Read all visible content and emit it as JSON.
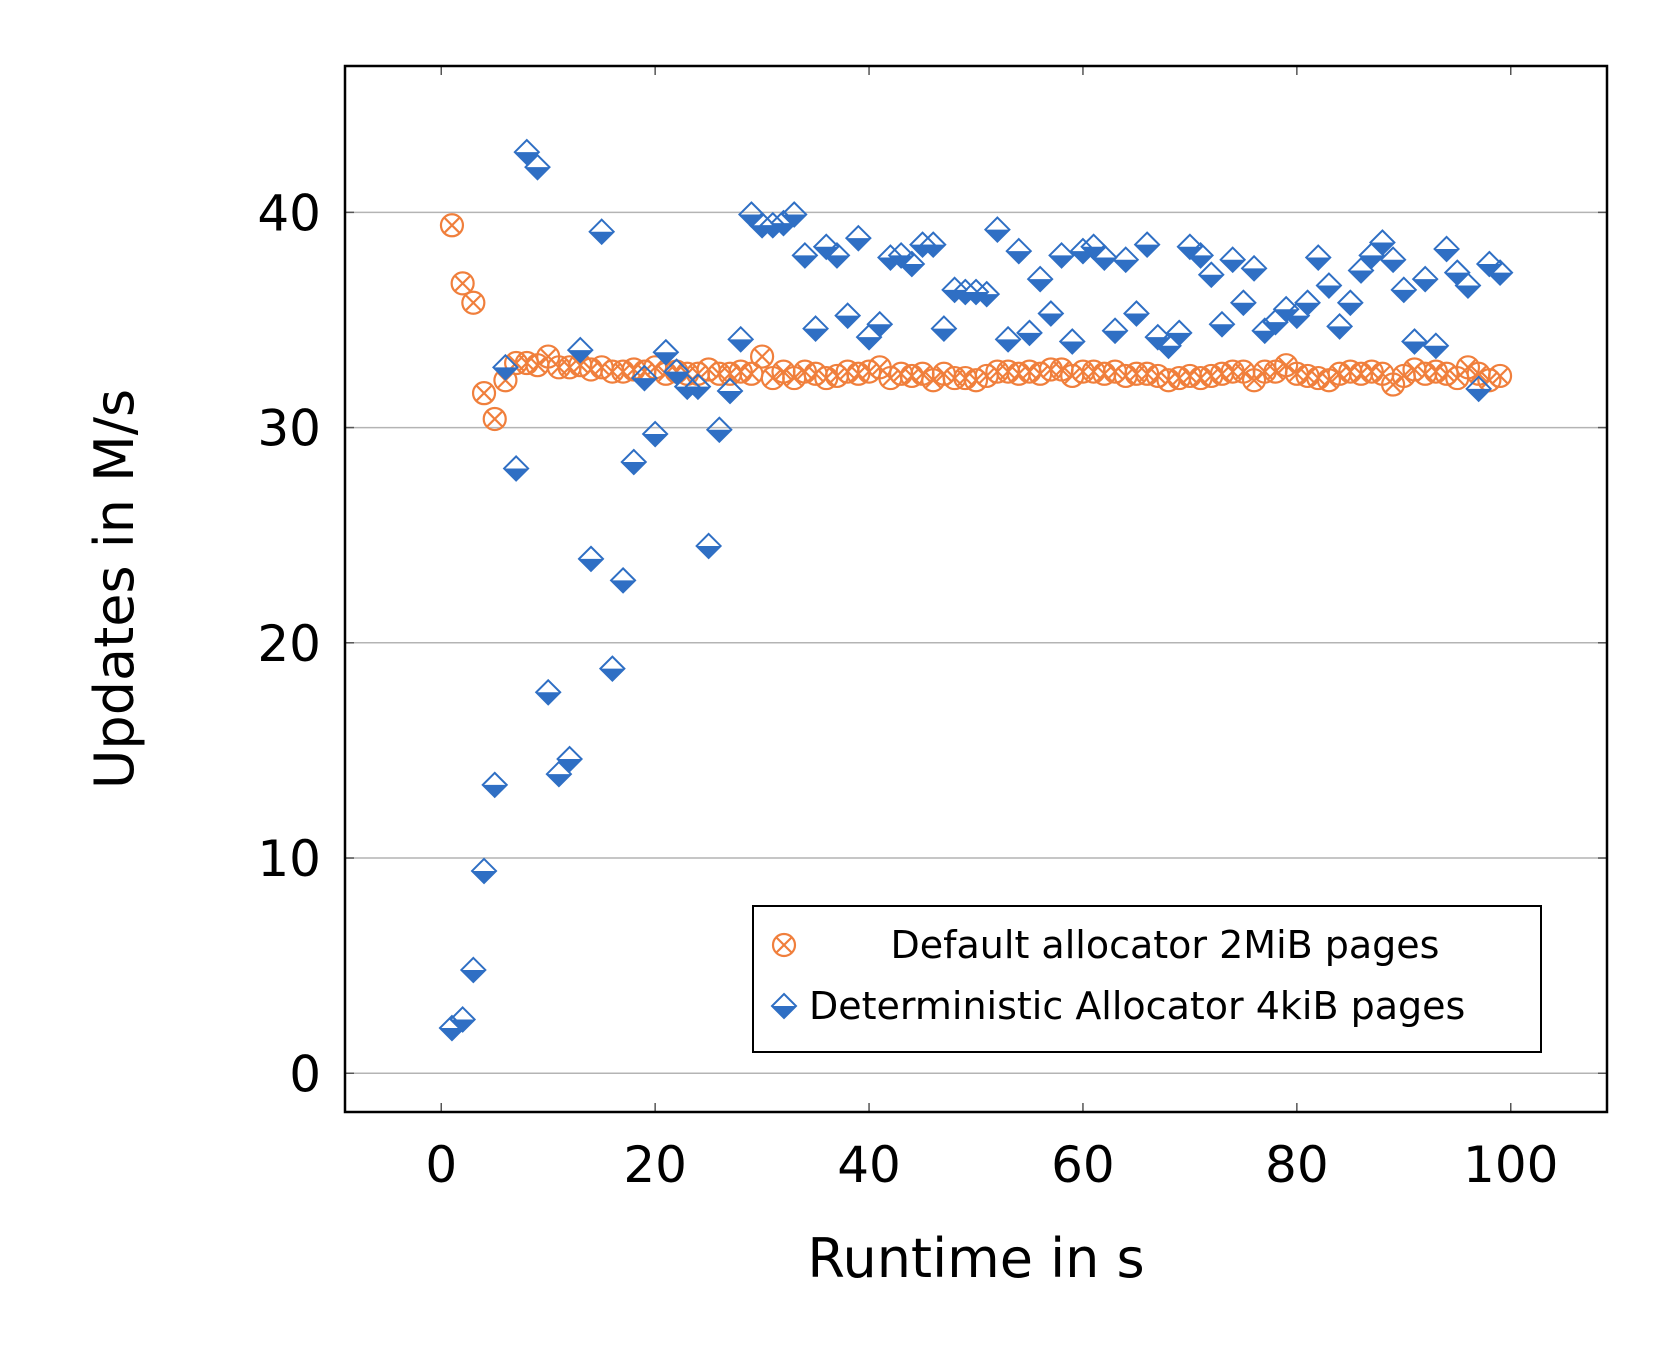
{
  "chart_data": {
    "type": "scatter",
    "xlabel": "Runtime in s",
    "ylabel": "Updates in M/s",
    "xlim": [
      -9,
      109
    ],
    "ylim": [
      -1.8,
      46.8
    ],
    "xticks": [
      "0",
      "20",
      "40",
      "60",
      "80",
      "100"
    ],
    "yticks": [
      "0",
      "10",
      "20",
      "30",
      "40"
    ],
    "grid": "horizontal",
    "legend_position": "bottom-right",
    "colors": {
      "default": "#F07F3C",
      "deterministic": "#2F6FC4",
      "grid": "#b4b4b4"
    },
    "series": [
      {
        "name": "Default allocator 2MiB pages",
        "marker": "circle-x",
        "x": [
          1,
          2,
          3,
          4,
          5,
          6,
          7,
          8,
          9,
          10,
          11,
          12,
          13,
          14,
          15,
          16,
          17,
          18,
          19,
          20,
          21,
          22,
          23,
          24,
          25,
          26,
          27,
          28,
          29,
          30,
          31,
          32,
          33,
          34,
          35,
          36,
          37,
          38,
          39,
          40,
          41,
          42,
          43,
          44,
          45,
          46,
          47,
          48,
          49,
          50,
          51,
          52,
          53,
          54,
          55,
          56,
          57,
          58,
          59,
          60,
          61,
          62,
          63,
          64,
          65,
          66,
          67,
          68,
          69,
          70,
          71,
          72,
          73,
          74,
          75,
          76,
          77,
          78,
          79,
          80,
          81,
          82,
          83,
          84,
          85,
          86,
          87,
          88,
          89,
          90,
          91,
          92,
          93,
          94,
          95,
          96,
          97,
          98,
          99
        ],
        "y": [
          39.4,
          36.7,
          35.8,
          31.6,
          30.4,
          32.2,
          33.0,
          33.0,
          32.9,
          33.3,
          32.8,
          32.8,
          32.9,
          32.7,
          32.8,
          32.6,
          32.6,
          32.7,
          32.6,
          32.8,
          32.5,
          32.6,
          32.5,
          32.5,
          32.7,
          32.5,
          32.5,
          32.6,
          32.5,
          33.3,
          32.3,
          32.6,
          32.3,
          32.6,
          32.5,
          32.3,
          32.4,
          32.6,
          32.5,
          32.6,
          32.8,
          32.3,
          32.5,
          32.4,
          32.5,
          32.2,
          32.5,
          32.3,
          32.3,
          32.2,
          32.4,
          32.6,
          32.6,
          32.5,
          32.6,
          32.5,
          32.7,
          32.7,
          32.4,
          32.6,
          32.6,
          32.5,
          32.6,
          32.4,
          32.5,
          32.5,
          32.4,
          32.2,
          32.3,
          32.4,
          32.3,
          32.4,
          32.5,
          32.6,
          32.6,
          32.2,
          32.6,
          32.6,
          32.9,
          32.5,
          32.4,
          32.3,
          32.2,
          32.5,
          32.6,
          32.5,
          32.6,
          32.5,
          32.0,
          32.4,
          32.7,
          32.5,
          32.6,
          32.5,
          32.3,
          32.8,
          32.5,
          32.2,
          32.4
        ]
      },
      {
        "name": "Deterministic Allocator 4kiB pages",
        "marker": "half-filled-diamond",
        "x": [
          1,
          2,
          3,
          4,
          5,
          6,
          7,
          8,
          9,
          10,
          11,
          12,
          13,
          14,
          15,
          16,
          17,
          18,
          19,
          20,
          21,
          22,
          23,
          24,
          25,
          26,
          27,
          28,
          29,
          30,
          31,
          32,
          33,
          34,
          35,
          36,
          37,
          38,
          39,
          40,
          41,
          42,
          43,
          44,
          45,
          46,
          47,
          48,
          49,
          50,
          51,
          52,
          53,
          54,
          55,
          56,
          57,
          58,
          59,
          60,
          61,
          62,
          63,
          64,
          65,
          66,
          67,
          68,
          69,
          70,
          71,
          72,
          73,
          74,
          75,
          76,
          77,
          78,
          79,
          80,
          81,
          82,
          83,
          84,
          85,
          86,
          87,
          88,
          89,
          90,
          91,
          92,
          93,
          94,
          95,
          96,
          97,
          98,
          99
        ],
        "y": [
          2.1,
          2.5,
          4.8,
          9.4,
          13.4,
          32.8,
          28.1,
          42.8,
          42.1,
          17.7,
          13.9,
          14.6,
          33.6,
          23.9,
          39.1,
          18.8,
          22.9,
          28.4,
          32.3,
          29.7,
          33.5,
          32.6,
          31.9,
          31.9,
          24.5,
          29.9,
          31.7,
          34.1,
          39.9,
          39.4,
          39.4,
          39.5,
          39.9,
          38.0,
          34.6,
          38.4,
          38.0,
          35.2,
          38.8,
          34.2,
          34.8,
          37.9,
          38.0,
          37.6,
          38.5,
          38.5,
          34.6,
          36.4,
          36.3,
          36.3,
          36.2,
          39.2,
          34.1,
          38.2,
          34.4,
          36.9,
          35.3,
          38.0,
          34.0,
          38.2,
          38.4,
          37.9,
          34.5,
          37.8,
          35.3,
          38.5,
          34.2,
          33.8,
          34.4,
          38.4,
          38.0,
          37.1,
          34.8,
          37.8,
          35.8,
          37.4,
          34.5,
          34.9,
          35.5,
          35.2,
          35.8,
          37.9,
          36.6,
          34.7,
          35.8,
          37.3,
          38.0,
          38.6,
          37.8,
          36.4,
          34.0,
          36.9,
          33.8,
          38.3,
          37.2,
          36.6,
          31.8,
          37.6,
          37.2
        ]
      }
    ]
  }
}
